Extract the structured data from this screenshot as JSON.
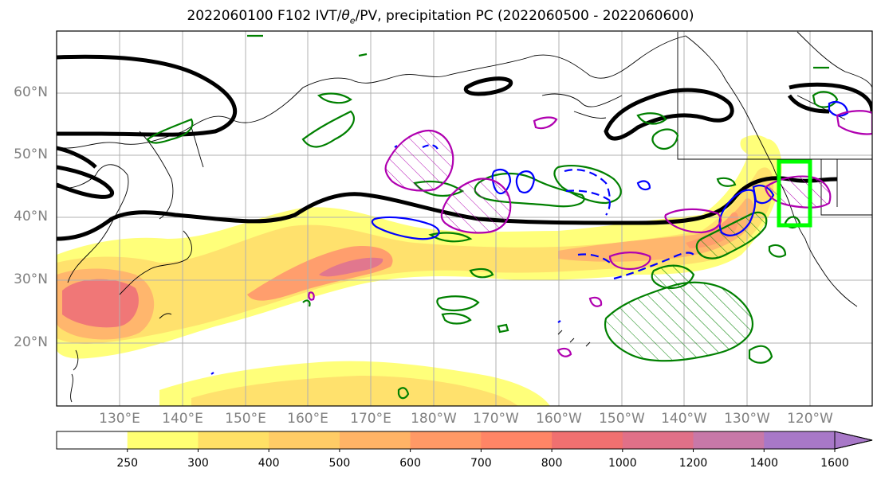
{
  "title": {
    "prefix": "2022060100 F102 IVT/",
    "theta": "θ",
    "sub": "e",
    "suffix": "/PV, precipitation PC (2022060500 - 2022060600)"
  },
  "lat_labels": [
    "60°N",
    "50°N",
    "40°N",
    "30°N",
    "20°N"
  ],
  "lon_labels": [
    "130°E",
    "140°E",
    "150°E",
    "160°E",
    "170°E",
    "180°W",
    "170°W",
    "160°W",
    "150°W",
    "140°W",
    "130°W",
    "120°W"
  ],
  "colorbar": {
    "ticks": [
      "250",
      "300",
      "400",
      "500",
      "600",
      "700",
      "800",
      "1000",
      "1200",
      "1400",
      "1600"
    ],
    "colors": [
      "#ffff73",
      "#ffe066",
      "#ffcc66",
      "#ffb366",
      "#ff9966",
      "#ff8566",
      "#f07070",
      "#e07088",
      "#c878a8",
      "#a878c8"
    ],
    "extend": "max"
  },
  "colors": {
    "pv_contour": "#000000",
    "positive_anom": "#008000",
    "negative_anom": "#0000ff",
    "theta_anom": "#b000b0",
    "target_box": "#00ff00",
    "coastline": "#000000",
    "grid": "#b0b0b0"
  }
}
